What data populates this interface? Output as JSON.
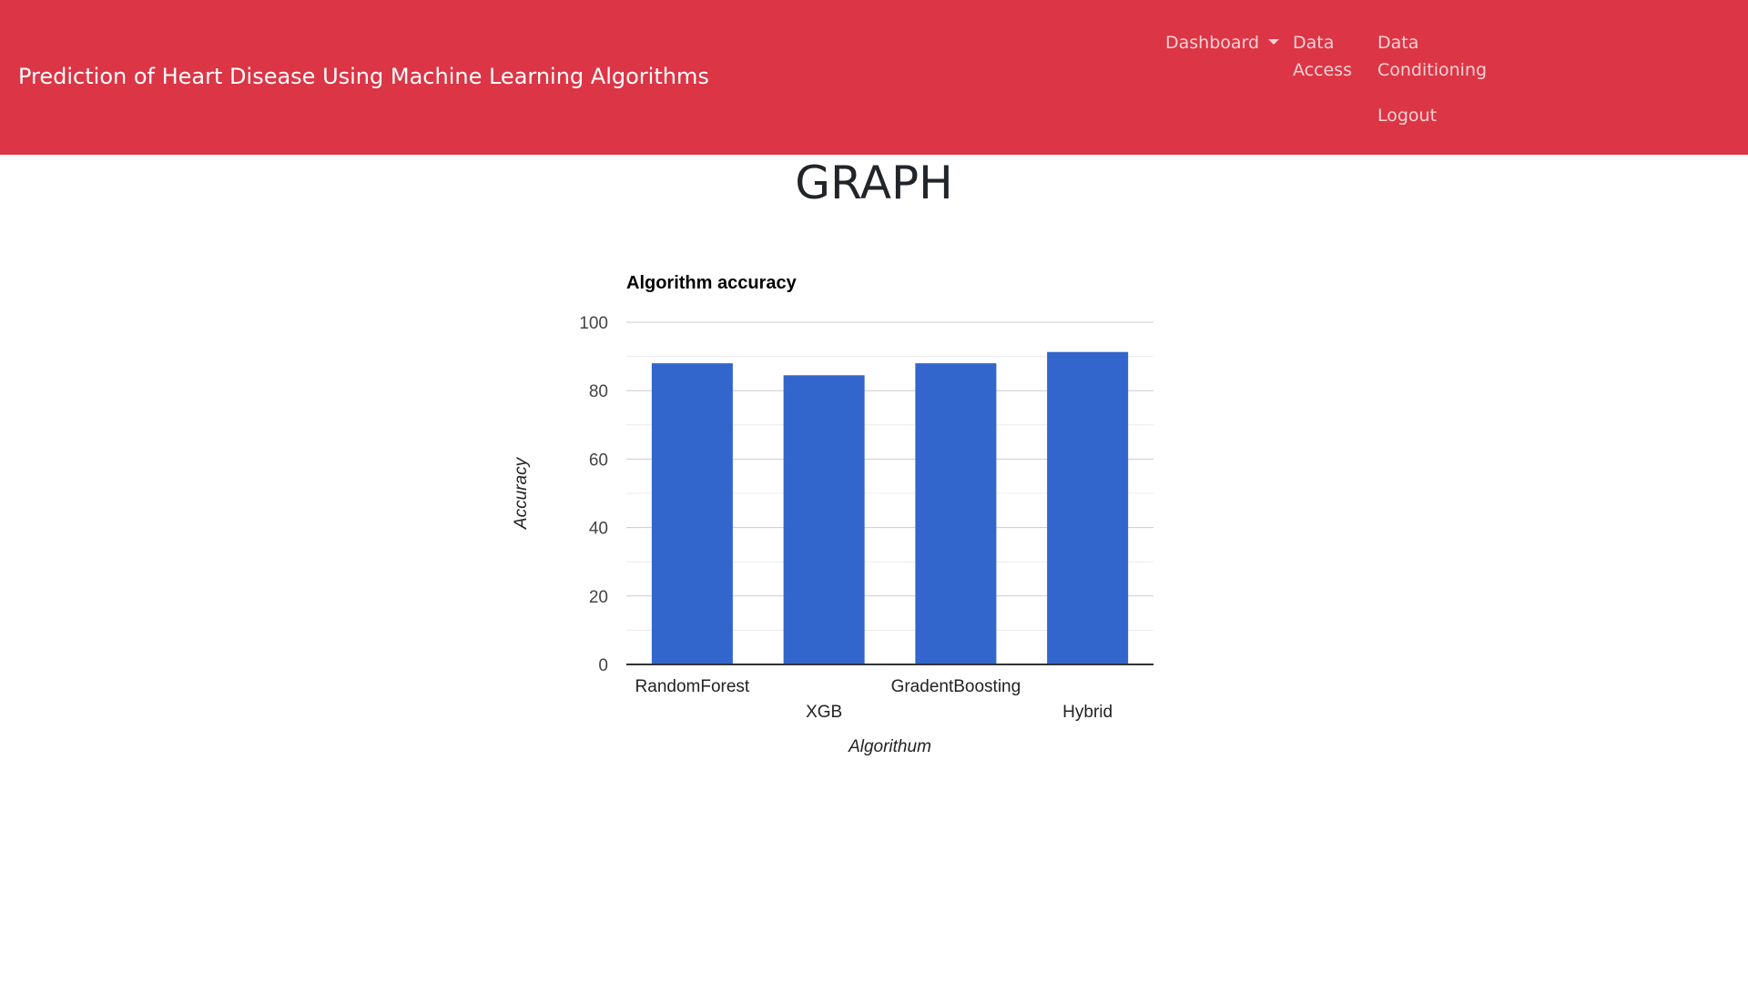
{
  "navbar": {
    "brand": "Prediction of Heart Disease Using Machine Learning Algorithms",
    "dashboard_label": "Dashboard",
    "data_access_label": "Data Access",
    "data_conditioning_label": "Data Conditioning",
    "logout_label": "Logout",
    "background_color": "#dc3545"
  },
  "page": {
    "title": "GRAPH"
  },
  "chart_data": {
    "type": "bar",
    "title": "Algorithm accuracy",
    "xlabel": "Algorithum",
    "ylabel": "Accuracy",
    "categories": [
      "RandomForest",
      "XGB",
      "GradentBoosting",
      "Hybrid"
    ],
    "values": [
      88,
      84.5,
      88,
      91.3
    ],
    "ylim": [
      0,
      100
    ],
    "yticks": [
      0,
      20,
      40,
      60,
      80,
      100
    ],
    "grid": true,
    "bar_color": "#3366cc"
  }
}
